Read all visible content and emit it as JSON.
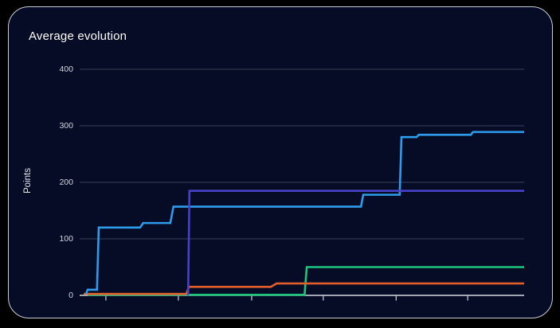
{
  "card": {
    "title": "Average evolution",
    "background": "#060b26",
    "border_color": "#c9cdd8",
    "outer_background": "#000000"
  },
  "chart_data": {
    "type": "line",
    "title": "Average evolution",
    "xlabel": "",
    "ylabel": "Points",
    "ylim": [
      0,
      420
    ],
    "y_ticks": [
      0,
      100,
      200,
      300,
      400
    ],
    "x_tick_labels": [],
    "x_ticks_rel": [
      0.059,
      0.222,
      0.387,
      0.548,
      0.712,
      0.873
    ],
    "grid": "horizontal-only",
    "legend": "none",
    "colors": {
      "grid": "rgba(200,205,220,0.28)",
      "axis": "#d6d9e0",
      "tick": "#cfd2dc"
    },
    "series": [
      {
        "name": "series-green",
        "color": "#1fc47c",
        "points_rel_x_value": [
          [
            0.018,
            1
          ],
          [
            0.506,
            1
          ],
          [
            0.511,
            50
          ],
          [
            1.0,
            50
          ]
        ]
      },
      {
        "name": "series-orange",
        "color": "#e25f2d",
        "points_rel_x_value": [
          [
            0.009,
            2.5
          ],
          [
            0.24,
            2.5
          ],
          [
            0.246,
            15
          ],
          [
            0.43,
            15
          ],
          [
            0.443,
            21
          ],
          [
            1.0,
            21
          ]
        ]
      },
      {
        "name": "series-blue",
        "color": "#2f9ceb",
        "points_rel_x_value": [
          [
            0.014,
            2
          ],
          [
            0.018,
            10
          ],
          [
            0.039,
            10
          ],
          [
            0.043,
            120
          ],
          [
            0.136,
            120
          ],
          [
            0.143,
            128
          ],
          [
            0.204,
            128
          ],
          [
            0.211,
            157
          ],
          [
            0.633,
            157
          ],
          [
            0.638,
            178
          ],
          [
            0.72,
            178
          ],
          [
            0.724,
            280
          ],
          [
            0.758,
            280
          ],
          [
            0.763,
            284
          ],
          [
            0.88,
            284
          ],
          [
            0.885,
            289
          ],
          [
            1.0,
            289
          ]
        ]
      },
      {
        "name": "series-purple",
        "color": "#4742c8",
        "points_rel_x_value": [
          [
            0.244,
            0
          ],
          [
            0.247,
            185
          ],
          [
            1.0,
            185
          ]
        ]
      }
    ]
  }
}
